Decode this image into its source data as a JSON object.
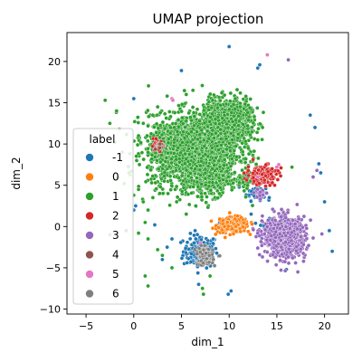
{
  "chart_data": {
    "type": "scatter",
    "title": "UMAP projection",
    "xlabel": "dim_1",
    "ylabel": "dim_2",
    "xlim": [
      -7,
      22.5
    ],
    "ylim": [
      -10.6,
      23.5
    ],
    "xticks": [
      -5,
      0,
      5,
      10,
      15,
      20
    ],
    "yticks": [
      -10,
      -5,
      0,
      5,
      10,
      15,
      20
    ],
    "grid": false,
    "legend": {
      "title": "label",
      "placement": "lower-left"
    },
    "series": [
      {
        "name": "-1",
        "color": "#1f77b4",
        "clusters": [
          {
            "cx": 7.0,
            "cy": -3.0,
            "sx": 0.9,
            "sy": 1.0,
            "n": 170
          },
          {
            "cx": 12.8,
            "cy": 4.2,
            "sx": 0.5,
            "sy": 0.5,
            "n": 50
          },
          {
            "cx": 14.5,
            "cy": 0.3,
            "sx": 0.6,
            "sy": 0.4,
            "n": 40
          }
        ],
        "points": [
          [
            10.0,
            21.8
          ],
          [
            13.0,
            19.2
          ],
          [
            13.2,
            19.6
          ],
          [
            18.5,
            13.5
          ],
          [
            19.0,
            12.0
          ],
          [
            19.4,
            7.6
          ],
          [
            19.6,
            6.5
          ],
          [
            20.0,
            3.0
          ],
          [
            0.0,
            15.5
          ],
          [
            5.0,
            18.9
          ],
          [
            0.2,
            2.5
          ],
          [
            0.0,
            2.0
          ],
          [
            -0.8,
            -0.5
          ],
          [
            2.2,
            0.2
          ],
          [
            3.5,
            -2.5
          ],
          [
            10.2,
            -7.8
          ],
          [
            9.9,
            -8.2
          ],
          [
            6.8,
            -7.0
          ],
          [
            20.5,
            -0.5
          ],
          [
            20.8,
            -3.0
          ],
          [
            16.0,
            -5.2
          ],
          [
            14.2,
            3.5
          ],
          [
            11.8,
            6.0
          ],
          [
            12.3,
            1.5
          ],
          [
            9.0,
            0.5
          ],
          [
            4.0,
            -1.5
          ],
          [
            3.0,
            -4.0
          ],
          [
            13.8,
            -1.5
          ]
        ]
      },
      {
        "name": "0",
        "color": "#ff7f0e",
        "clusters": [
          {
            "cx": 10.4,
            "cy": 0.2,
            "sx": 0.8,
            "sy": 0.45,
            "n": 260
          }
        ],
        "points": [
          [
            12.4,
            0.3
          ],
          [
            12.0,
            -0.6
          ],
          [
            9.0,
            0.9
          ]
        ]
      },
      {
        "name": "1",
        "color": "#2ca02c",
        "clusters": [
          {
            "cx": 9.8,
            "cy": 12.8,
            "sx": 1.2,
            "sy": 1.3,
            "n": 1000
          },
          {
            "cx": 6.3,
            "cy": 9.2,
            "sx": 2.4,
            "sy": 2.2,
            "n": 1800
          },
          {
            "cx": 8.0,
            "cy": 6.0,
            "sx": 1.0,
            "sy": 1.1,
            "n": 350
          },
          {
            "cx": 3.8,
            "cy": 9.8,
            "sx": 0.9,
            "sy": 1.2,
            "n": 200
          },
          {
            "cx": 11.5,
            "cy": 5.5,
            "sx": 0.35,
            "sy": 0.4,
            "n": 60
          }
        ],
        "points": [
          [
            -3.0,
            15.3
          ],
          [
            -1.8,
            14.0
          ],
          [
            -2.5,
            12.5
          ],
          [
            -1.5,
            11.8
          ],
          [
            0.5,
            11.0
          ],
          [
            1.0,
            12.5
          ],
          [
            1.5,
            12.2
          ],
          [
            2.0,
            13.5
          ],
          [
            2.5,
            14.5
          ],
          [
            3.5,
            15.8
          ],
          [
            5.5,
            16.0
          ],
          [
            6.2,
            16.5
          ],
          [
            -2.0,
            10.2
          ],
          [
            -1.2,
            9.0
          ],
          [
            0.3,
            8.0
          ],
          [
            0.6,
            7.5
          ],
          [
            -0.5,
            6.5
          ],
          [
            -1.0,
            5.2
          ],
          [
            0.5,
            4.5
          ],
          [
            1.0,
            3.0
          ],
          [
            1.5,
            2.0
          ],
          [
            2.0,
            3.5
          ],
          [
            2.8,
            4.8
          ],
          [
            3.2,
            5.5
          ],
          [
            1.2,
            0.5
          ],
          [
            0.5,
            -0.8
          ],
          [
            1.5,
            -1.5
          ],
          [
            2.5,
            -2.8
          ],
          [
            3.0,
            -3.5
          ],
          [
            4.0,
            -5.0
          ],
          [
            1.2,
            -6.0
          ],
          [
            1.5,
            -7.2
          ],
          [
            7.3,
            -8.2
          ],
          [
            7.2,
            -7.5
          ],
          [
            8.0,
            -6.0
          ],
          [
            5.5,
            1.5
          ],
          [
            6.5,
            2.5
          ],
          [
            4.5,
            3.0
          ],
          [
            12.0,
            9.5
          ],
          [
            13.0,
            10.5
          ],
          [
            13.5,
            12.0
          ],
          [
            4.3,
            13.8
          ],
          [
            0.0,
            3.8
          ]
        ]
      },
      {
        "name": "2",
        "color": "#d62728",
        "clusters": [
          {
            "cx": 13.5,
            "cy": 6.3,
            "sx": 0.8,
            "sy": 0.6,
            "n": 180
          },
          {
            "cx": 2.5,
            "cy": 9.8,
            "sx": 0.3,
            "sy": 0.3,
            "n": 30
          }
        ],
        "points": [
          [
            12.0,
            6.8
          ],
          [
            14.5,
            7.0
          ]
        ]
      },
      {
        "name": "3",
        "color": "#9467bd",
        "clusters": [
          {
            "cx": 15.8,
            "cy": -1.3,
            "sx": 1.1,
            "sy": 1.2,
            "n": 700
          },
          {
            "cx": 13.3,
            "cy": 4.0,
            "sx": 0.3,
            "sy": 0.3,
            "n": 30
          }
        ],
        "points": [
          [
            16.2,
            20.2
          ],
          [
            18.8,
            6.0
          ],
          [
            19.2,
            6.8
          ],
          [
            -2.5,
            -1.0
          ],
          [
            17.2,
            -5.5
          ]
        ]
      },
      {
        "name": "4",
        "color": "#8c564b",
        "clusters": [
          {
            "cx": 2.8,
            "cy": 9.8,
            "sx": 0.25,
            "sy": 0.25,
            "n": 20
          }
        ],
        "points": [
          [
            7.5,
            -3.8
          ]
        ]
      },
      {
        "name": "5",
        "color": "#e377c2",
        "clusters": [],
        "points": [
          [
            4.0,
            15.5
          ],
          [
            4.1,
            15.3
          ],
          [
            14.0,
            20.8
          ],
          [
            15.2,
            7.5
          ],
          [
            15.0,
            7.2
          ],
          [
            13.0,
            6.0
          ],
          [
            7.0,
            -2.0
          ]
        ]
      },
      {
        "name": "6",
        "color": "#7f7f7f",
        "clusters": [
          {
            "cx": 7.4,
            "cy": -3.6,
            "sx": 0.45,
            "sy": 0.55,
            "n": 90
          }
        ],
        "points": []
      }
    ]
  }
}
